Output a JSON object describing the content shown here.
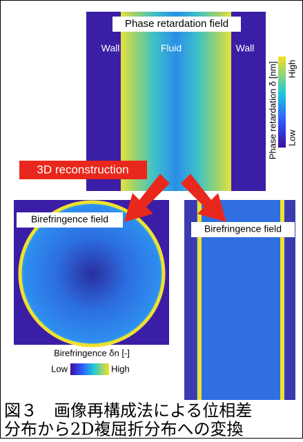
{
  "top_image": {
    "title": "Phase retardation field",
    "labels": [
      "Wall",
      "Fluid",
      "Wall"
    ],
    "colorbar": {
      "label": "Phase retardation δ [nm]",
      "high": "High",
      "low": "Low"
    }
  },
  "arrow_label": "3D reconstruction",
  "bottom_left": {
    "title": "Birefringence field",
    "colorbar": {
      "label": "Birefringence δn [-]",
      "low": "Low",
      "high": "High"
    }
  },
  "bottom_right": {
    "title": "Birefringence field"
  },
  "caption": [
    "図３　画像再構成法による位相差",
    "分布から2D複屈折分布への変換"
  ]
}
